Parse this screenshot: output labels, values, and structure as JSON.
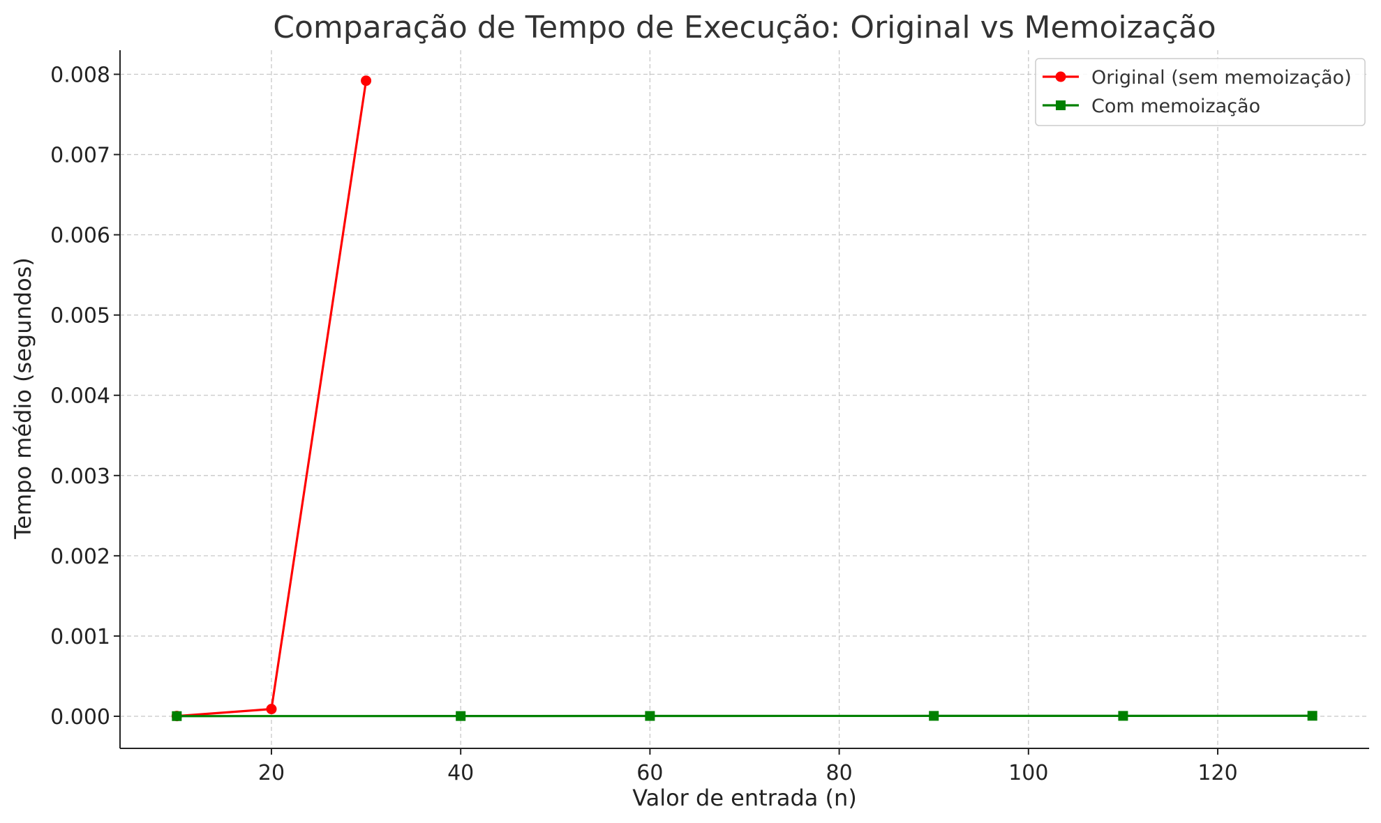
{
  "chart_data": {
    "type": "line",
    "title": "Comparação de Tempo de Execução: Original vs Memoização",
    "xlabel": "Valor de entrada (n)",
    "ylabel": "Tempo médio (segundos)",
    "xlim": [
      4,
      136
    ],
    "ylim": [
      -0.0004,
      0.0083
    ],
    "xticks": [
      20,
      40,
      60,
      80,
      100,
      120
    ],
    "yticks": [
      0.0,
      0.001,
      0.002,
      0.003,
      0.004,
      0.005,
      0.006,
      0.007,
      0.008
    ],
    "xtick_labels": [
      "20",
      "40",
      "60",
      "80",
      "100",
      "120"
    ],
    "ytick_labels": [
      "0.000",
      "0.001",
      "0.002",
      "0.003",
      "0.004",
      "0.005",
      "0.006",
      "0.007",
      "0.008"
    ],
    "grid": true,
    "legend_position": "top-right",
    "series": [
      {
        "name": "Original (sem memoização)",
        "color": "#ff0000",
        "marker": "circle",
        "x": [
          10,
          20,
          30
        ],
        "y": [
          3e-06,
          9e-05,
          0.00792
        ]
      },
      {
        "name": "Com memoização",
        "color": "#008000",
        "marker": "square",
        "x": [
          10,
          40,
          60,
          90,
          110,
          130
        ],
        "y": [
          2e-06,
          3e-06,
          4e-06,
          5e-06,
          5e-06,
          6e-06
        ]
      }
    ]
  }
}
